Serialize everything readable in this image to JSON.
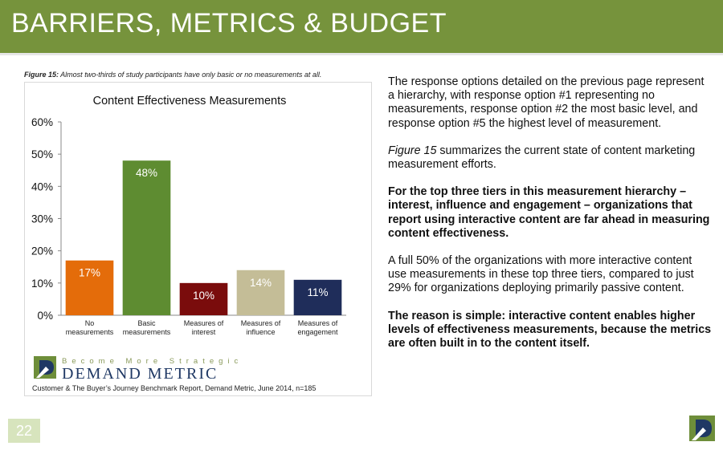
{
  "header": {
    "title": "BARRIERS, METRICS & BUDGET"
  },
  "figure": {
    "label": "Figure 15:",
    "caption": " Almost two-thirds of study participants have only basic or no measurements at all."
  },
  "chart_data": {
    "type": "bar",
    "title": "Content Effectiveness Measurements",
    "categories": [
      [
        "No",
        "measurements"
      ],
      [
        "Basic",
        "measurements"
      ],
      [
        "Measures of",
        "interest"
      ],
      [
        "Measures of",
        "influence"
      ],
      [
        "Measures of",
        "engagement"
      ]
    ],
    "values": [
      17,
      48,
      10,
      14,
      11
    ],
    "data_labels": [
      "17%",
      "48%",
      "10%",
      "14%",
      "11%"
    ],
    "colors": [
      "#e46c0a",
      "#5e8c31",
      "#7a0c0c",
      "#c4bd97",
      "#1f2d5a"
    ],
    "ylim": [
      0,
      60
    ],
    "yticks": [
      "0%",
      "10%",
      "20%",
      "30%",
      "40%",
      "50%",
      "60%"
    ],
    "xlabel": "",
    "ylabel": "",
    "grid": false,
    "legend": "none"
  },
  "brand": {
    "tagline": "Become More Strategic",
    "name": "DEMAND METRIC"
  },
  "source": "Customer & The Buyer’s Journey Benchmark Report, Demand Metric, June 2014, n=185",
  "body": {
    "p1": "The response options detailed on the previous page represent a hierarchy, with response option #1 representing no measurements, response option #2 the most basic level, and response option #5 the highest level of measurement.",
    "p2_italic": "Figure 15",
    "p2_rest": " summarizes the current state of content marketing measurement efforts.",
    "p3": "For the top three tiers in this measurement hierarchy – interest, influence and engagement – organizations that report using interactive content are far ahead in measuring content effectiveness.",
    "p4": "A full 50% of the organizations with more interactive content use measurements in these top three tiers, compared to just 29% for organizations deploying primarily passive content.",
    "p5": "The reason is simple: interactive content enables higher levels of effectiveness measurements, because the metrics are often built in to the content itself."
  },
  "footer": {
    "page_number": "22"
  },
  "icons": {
    "brand_logo": "demand-metric-logo-icon"
  }
}
